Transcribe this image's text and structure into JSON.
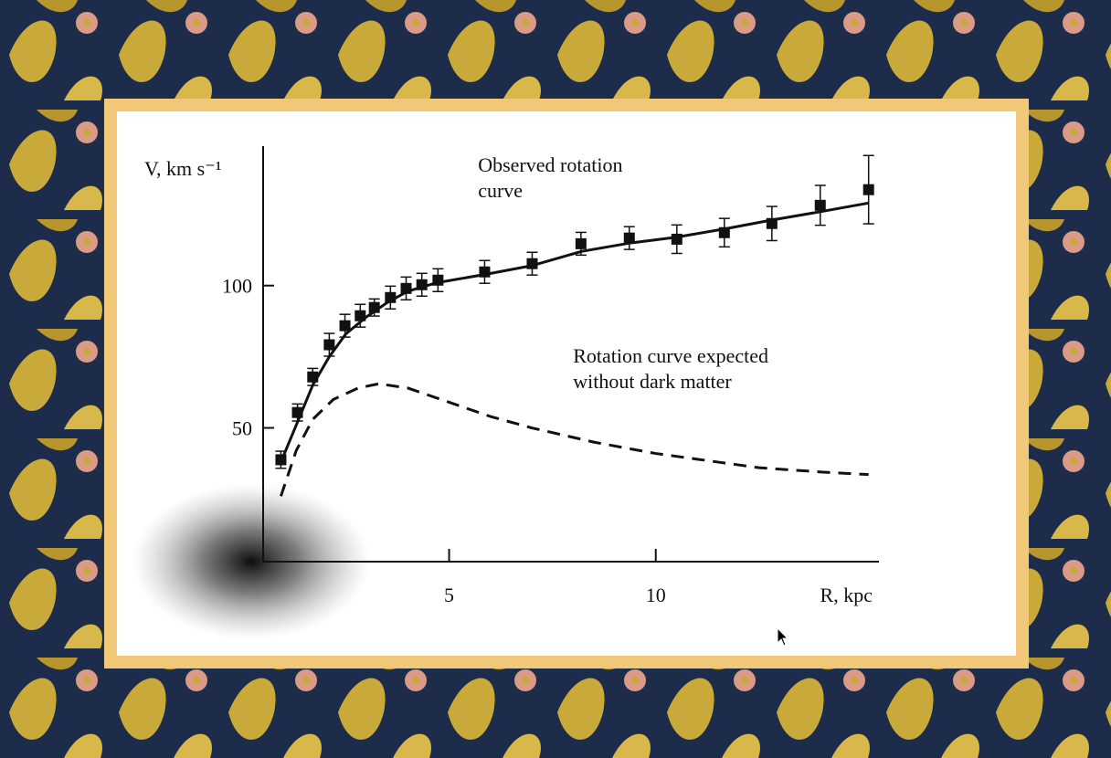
{
  "chart_data": {
    "type": "line",
    "x_label": "R, kpc",
    "y_label": "V, km s⁻¹",
    "xlim": [
      0.5,
      15.4
    ],
    "ylim": [
      3,
      149
    ],
    "xticks": [
      5,
      10
    ],
    "yticks": [
      50,
      100
    ],
    "annotations": [
      {
        "lines": [
          "Observed rotation",
          "curve"
        ],
        "x": 5.7,
        "y": 140
      },
      {
        "lines": [
          "Rotation curve expected",
          "without dark matter"
        ],
        "x": 8.0,
        "y": 73
      }
    ],
    "series": [
      {
        "style": "points",
        "color": "#111111",
        "x": [
          0.93,
          1.33,
          1.7,
          2.1,
          2.48,
          2.85,
          3.19,
          3.58,
          3.96,
          4.34,
          4.73,
          5.86,
          7.01,
          8.19,
          9.36,
          10.51,
          11.66,
          12.81,
          13.98,
          15.15
        ],
        "values": [
          38.8,
          55.4,
          67.9,
          79.2,
          85.9,
          89.4,
          92.3,
          95.8,
          99.0,
          100.3,
          101.9,
          104.8,
          107.7,
          114.7,
          116.7,
          116.3,
          118.6,
          121.8,
          128.2,
          133.7
        ],
        "errors": [
          3,
          3,
          3,
          4,
          4,
          4,
          3,
          4,
          4,
          4,
          4,
          4,
          4,
          4,
          4,
          5,
          5,
          6,
          7,
          12
        ]
      },
      {
        "style": "solid",
        "color": "#111111",
        "x": [
          0.93,
          1.33,
          1.7,
          2.1,
          2.5,
          3.0,
          3.5,
          4.0,
          4.7,
          5.9,
          7.0,
          8.2,
          9.4,
          10.5,
          11.7,
          12.8,
          14.0,
          15.15
        ],
        "values": [
          38,
          52,
          65,
          75,
          83,
          89,
          94,
          98,
          101,
          104,
          107,
          112,
          115,
          117,
          120,
          123,
          126,
          129
        ]
      },
      {
        "style": "dashed",
        "color": "#111111",
        "x": [
          0.93,
          1.3,
          1.7,
          2.2,
          2.8,
          3.3,
          4.0,
          5.0,
          6.0,
          7.0,
          8.5,
          10.0,
          11.5,
          12.5,
          14.0,
          15.15
        ],
        "values": [
          26,
          42,
          53,
          60,
          64,
          65.5,
          64,
          59,
          54,
          50,
          45,
          41,
          38,
          36,
          34.5,
          33.6
        ]
      }
    ]
  }
}
